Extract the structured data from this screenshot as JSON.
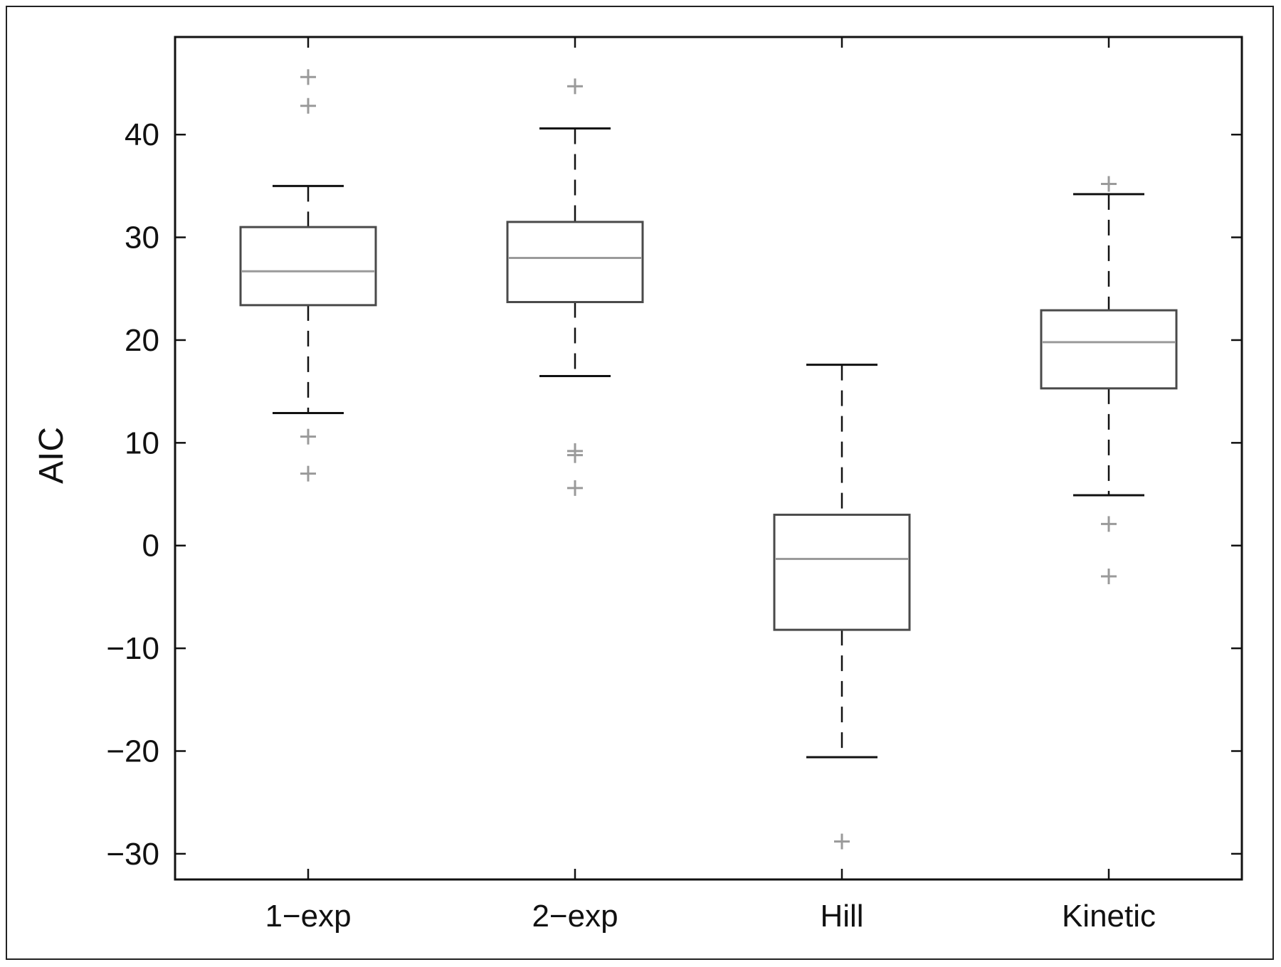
{
  "chart_data": {
    "type": "box",
    "title": "",
    "xlabel": "",
    "ylabel": "AIC",
    "ylim": [
      -32.5,
      49.5
    ],
    "yticks": [
      -30,
      -20,
      -10,
      0,
      10,
      20,
      30,
      40
    ],
    "ytick_labels": [
      "−30",
      "−20",
      "−10",
      "0",
      "10",
      "20",
      "30",
      "40"
    ],
    "categories": [
      "1−exp",
      "2−exp",
      "Hill",
      "Kinetic"
    ],
    "boxes": [
      {
        "category": "1−exp",
        "whisker_low": 12.9,
        "q1": 23.4,
        "median": 26.7,
        "q3": 31.0,
        "whisker_high": 35.0,
        "outliers": [
          45.6,
          42.8,
          10.6,
          7.0
        ]
      },
      {
        "category": "2−exp",
        "whisker_low": 16.5,
        "q1": 23.7,
        "median": 28.0,
        "q3": 31.5,
        "whisker_high": 40.6,
        "outliers": [
          44.7,
          9.2,
          8.8,
          5.6
        ]
      },
      {
        "category": "Hill",
        "whisker_low": -20.6,
        "q1": -8.2,
        "median": -1.3,
        "q3": 3.0,
        "whisker_high": 17.6,
        "outliers": [
          -28.8
        ]
      },
      {
        "category": "Kinetic",
        "whisker_low": 4.9,
        "q1": 15.3,
        "median": 19.8,
        "q3": 22.9,
        "whisker_high": 34.2,
        "outliers": [
          35.2,
          2.1,
          -3.0
        ]
      }
    ],
    "grid": false,
    "legend": "none",
    "colors": {
      "axis": "#111111",
      "box_edge": "#4a4a4a",
      "median": "#9a9a9a",
      "whisker": "#111111",
      "outlier": "#9a9a9a"
    }
  }
}
